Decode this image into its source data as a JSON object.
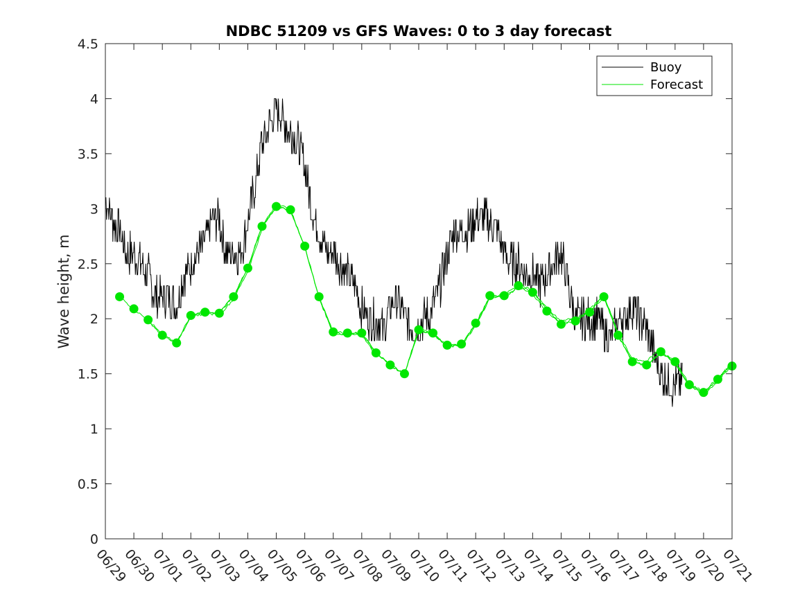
{
  "chart_data": {
    "type": "line",
    "title": "NDBC 51209 vs GFS Waves: 0 to 3 day forecast",
    "xlabel": "",
    "ylabel": "Wave height, m",
    "ylim": [
      0,
      4.5
    ],
    "xlim": [
      0,
      22
    ],
    "grid": false,
    "legend_position": "top-right",
    "yticks": [
      "0",
      "0.5",
      "1",
      "1.5",
      "2",
      "2.5",
      "3",
      "3.5",
      "4",
      "4.5"
    ],
    "xticks": [
      "06/29",
      "06/30",
      "07/01",
      "07/02",
      "07/03",
      "07/04",
      "07/05",
      "07/06",
      "07/07",
      "07/08",
      "07/09",
      "07/10",
      "07/11",
      "07/12",
      "07/13",
      "07/14",
      "07/15",
      "07/16",
      "07/17",
      "07/18",
      "07/19",
      "07/20",
      "07/21"
    ],
    "colors": {
      "buoy": "#000000",
      "forecast": "#00e600"
    },
    "series": [
      {
        "name": "Buoy",
        "color": "#000000",
        "x": [
          0.0,
          0.25,
          0.5,
          0.75,
          1.0,
          1.25,
          1.5,
          1.75,
          2.0,
          2.25,
          2.5,
          2.75,
          3.0,
          3.25,
          3.5,
          3.75,
          4.0,
          4.25,
          4.5,
          4.75,
          5.0,
          5.25,
          5.5,
          5.75,
          6.0,
          6.25,
          6.5,
          6.75,
          7.0,
          7.25,
          7.5,
          7.75,
          8.0,
          8.25,
          8.5,
          8.75,
          9.0,
          9.25,
          9.5,
          9.75,
          10.0,
          10.25,
          10.5,
          10.75,
          11.0,
          11.25,
          11.5,
          11.75,
          12.0,
          12.25,
          12.5,
          12.75,
          13.0,
          13.25,
          13.5,
          13.75,
          14.0,
          14.25,
          14.5,
          14.75,
          15.0,
          15.25,
          15.5,
          15.75,
          16.0,
          16.25,
          16.5,
          16.75,
          17.0,
          17.25,
          17.5,
          17.75,
          18.0,
          18.25,
          18.5,
          18.75,
          19.0,
          19.25,
          19.5,
          19.75,
          20.0,
          20.25
        ],
        "y": [
          3.1,
          2.9,
          2.8,
          2.6,
          2.6,
          2.5,
          2.4,
          2.2,
          2.2,
          2.2,
          2.1,
          2.4,
          2.5,
          2.6,
          2.7,
          2.9,
          2.9,
          2.6,
          2.6,
          2.6,
          2.9,
          3.2,
          3.6,
          3.75,
          3.9,
          3.8,
          3.7,
          3.6,
          3.4,
          3.0,
          2.8,
          2.6,
          2.6,
          2.5,
          2.4,
          2.3,
          2.1,
          2.0,
          2.0,
          1.9,
          2.1,
          2.2,
          2.0,
          1.9,
          1.95,
          2.0,
          2.1,
          2.3,
          2.6,
          2.8,
          2.8,
          2.8,
          2.9,
          2.9,
          2.9,
          2.8,
          2.6,
          2.5,
          2.5,
          2.4,
          2.4,
          2.3,
          2.4,
          2.5,
          2.6,
          2.3,
          2.0,
          2.0,
          2.0,
          2.0,
          1.9,
          1.8,
          2.0,
          2.0,
          2.1,
          2.0,
          1.9,
          1.7,
          1.5,
          1.4,
          1.4,
          1.4
        ]
      },
      {
        "name": "Forecast",
        "color": "#00e600",
        "x": [
          0.5,
          1.0,
          1.5,
          2.0,
          2.5,
          3.0,
          3.5,
          4.0,
          4.5,
          5.0,
          5.5,
          6.0,
          6.5,
          7.0,
          7.5,
          8.0,
          8.5,
          9.0,
          9.5,
          10.0,
          10.5,
          11.0,
          11.5,
          12.0,
          12.5,
          13.0,
          13.5,
          14.0,
          14.5,
          15.0,
          15.5,
          16.0,
          16.5,
          17.0,
          17.5,
          18.0,
          18.5,
          19.0,
          19.5,
          20.0,
          20.5,
          21.0,
          21.5,
          22.0
        ],
        "y": [
          2.2,
          2.09,
          1.99,
          1.85,
          1.78,
          2.03,
          2.06,
          2.05,
          2.2,
          2.46,
          2.84,
          3.02,
          2.99,
          2.66,
          2.2,
          1.88,
          1.87,
          1.87,
          1.69,
          1.58,
          1.5,
          1.9,
          1.87,
          1.76,
          1.77,
          1.96,
          2.21,
          2.21,
          2.3,
          2.24,
          2.07,
          1.95,
          1.98,
          2.06,
          2.2,
          1.85,
          1.61,
          1.58,
          1.7,
          1.61,
          1.4,
          1.33,
          1.45,
          1.57
        ]
      }
    ]
  },
  "legend": {
    "buoy_label": "Buoy",
    "forecast_label": "Forecast"
  }
}
